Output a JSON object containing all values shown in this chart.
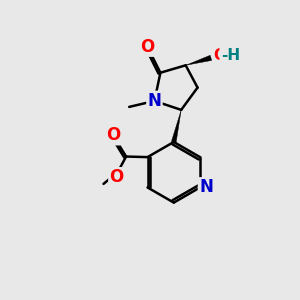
{
  "background_color": "#e8e8e8",
  "fig_size": [
    3.0,
    3.0
  ],
  "dpi": 100,
  "bond_color": "#000000",
  "bond_lw": 1.8,
  "atom_colors": {
    "O": "#ff0000",
    "N": "#0000cc",
    "H": "#008080",
    "C": "#000000"
  },
  "font_size_atoms": 11,
  "font_size_small": 9
}
